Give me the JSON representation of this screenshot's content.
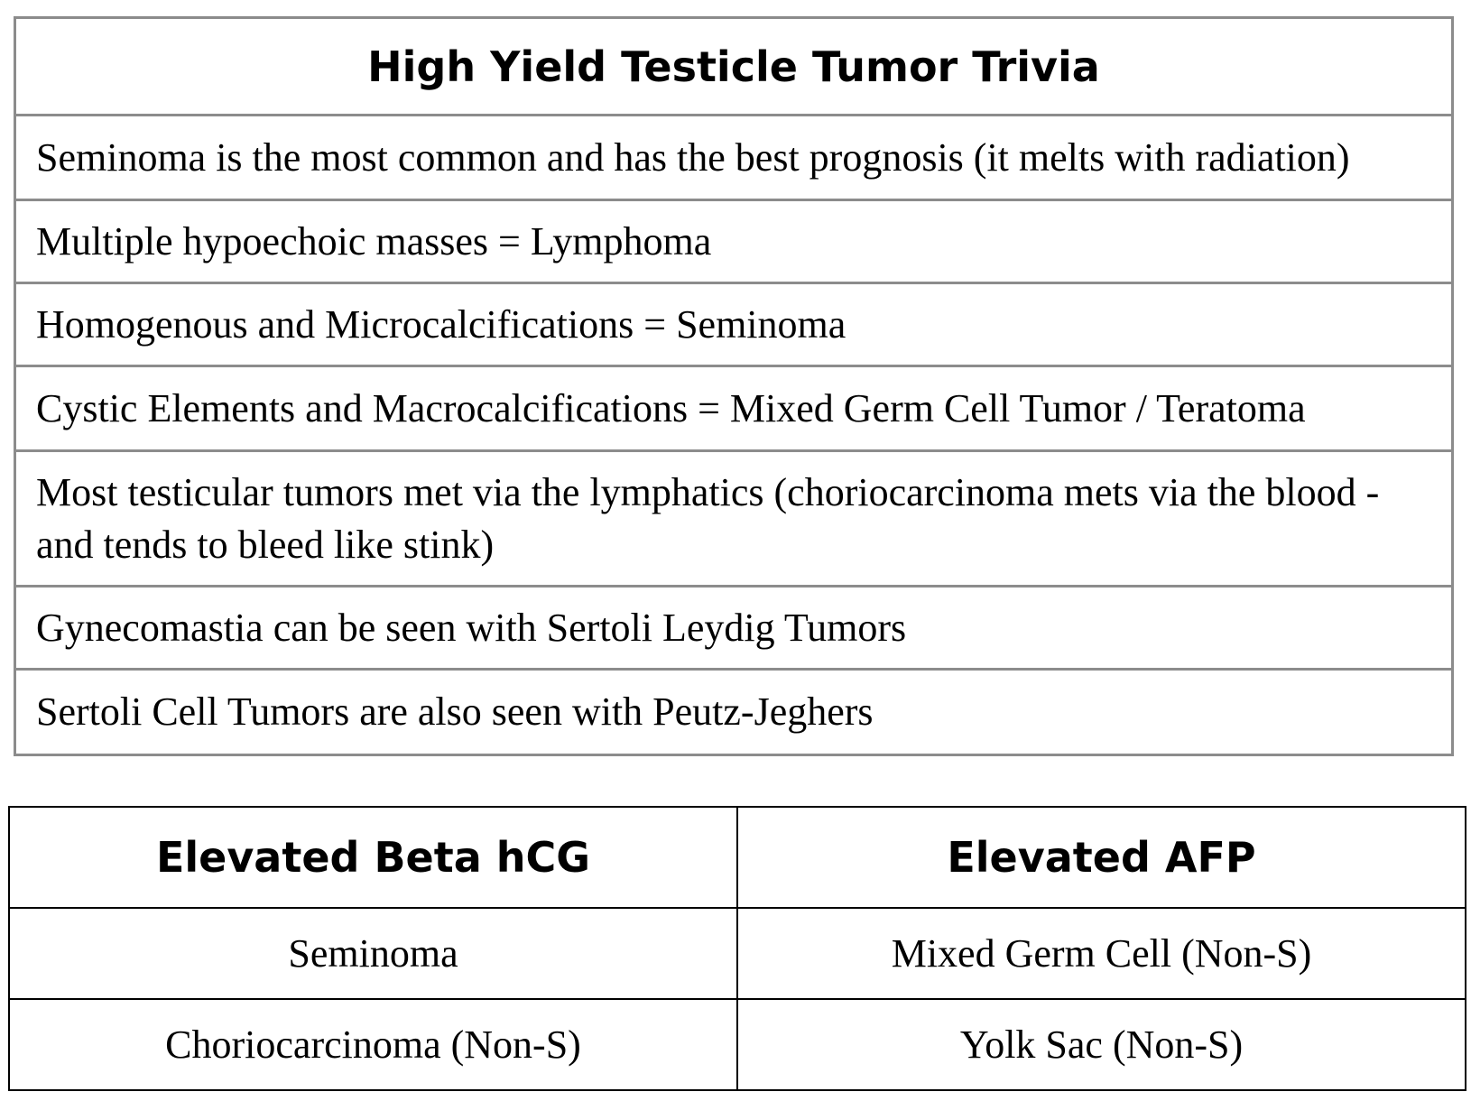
{
  "trivia": {
    "title": "High Yield Testicle Tumor Trivia",
    "rows": [
      "Seminoma is the most common and has the best prognosis (it melts with radiation)",
      "Multiple hypoechoic masses = Lymphoma",
      "Homogenous and Microcalcifications = Seminoma",
      "Cystic Elements and Macrocalcifications = Mixed Germ Cell Tumor / Teratoma",
      "Most testicular tumors met via the lymphatics (choriocarcinoma mets via the blood - and tends to bleed like stink)",
      "Gynecomastia can be seen with Sertoli Leydig Tumors",
      "Sertoli Cell Tumors are also seen with Peutz-Jeghers"
    ]
  },
  "markers": {
    "headers": [
      "Elevated Beta hCG",
      "Elevated AFP"
    ],
    "rows": [
      [
        "Seminoma",
        "Mixed Germ Cell (Non-S)"
      ],
      [
        "Choriocarcinoma (Non-S)",
        "Yolk Sac (Non-S)"
      ]
    ]
  }
}
